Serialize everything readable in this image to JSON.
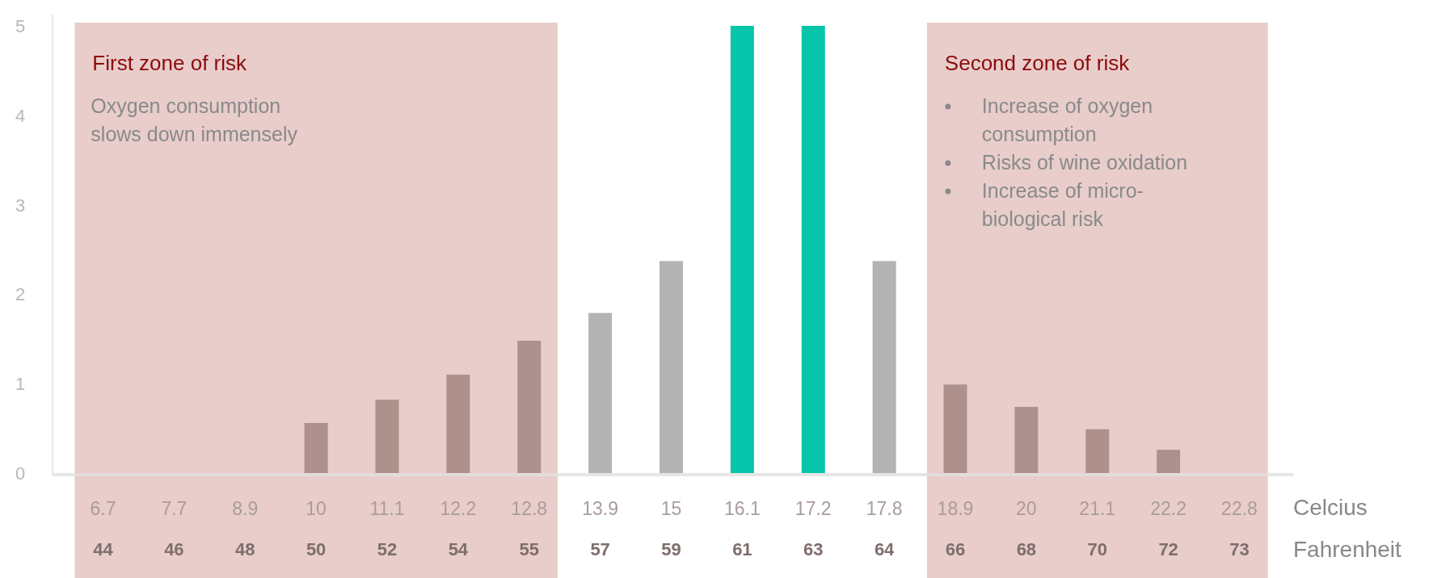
{
  "chart_data": {
    "type": "bar",
    "xlabel": "Celcius",
    "categories": [
      "6.7",
      "7.7",
      "8.9",
      "10",
      "11.1",
      "12.2",
      "12.8",
      "13.9",
      "15",
      "16.1",
      "17.2",
      "17.8",
      "18.9",
      "20",
      "21.1",
      "22.2",
      "22.8"
    ],
    "values": [
      0,
      0,
      0,
      0.56,
      0.82,
      1.1,
      1.48,
      1.79,
      2.37,
      5,
      5,
      2.37,
      0.99,
      0.74,
      0.49,
      0.26,
      0
    ],
    "colors": [
      "#ae918d",
      "#ae918d",
      "#ae918d",
      "#ae918d",
      "#ae918d",
      "#ae918d",
      "#ae918d",
      "#b3b3b3",
      "#b3b3b3",
      "#07c5aa",
      "#07c5aa",
      "#b3b3b3",
      "#ae918d",
      "#ae918d",
      "#ae918d",
      "#ae918d",
      "#ae918d"
    ],
    "ylim": [
      0,
      5
    ],
    "yticks": [
      0,
      1,
      2,
      3,
      4,
      5
    ],
    "grid": false,
    "bands": [
      {
        "axis": "x",
        "from": "6.7",
        "to": "12.8",
        "label": "First zone of risk",
        "color": "#e8cdcb"
      },
      {
        "axis": "x",
        "from": "18.9",
        "to": "22.8",
        "label": "Second zone of risk",
        "color": "#e8cdcb"
      }
    ],
    "annotations": [
      "44",
      "46",
      "48",
      "50",
      "52",
      "54",
      "55",
      "57",
      "59",
      "61",
      "63",
      "64",
      "66",
      "68",
      "70",
      "72",
      "73",
      "Oxygen consumption slows down immensely",
      "Increase of oxygen consumption",
      "Risks of wine oxidation",
      "Increase of micro-biological risk",
      "Fahrenheit"
    ]
  }
}
